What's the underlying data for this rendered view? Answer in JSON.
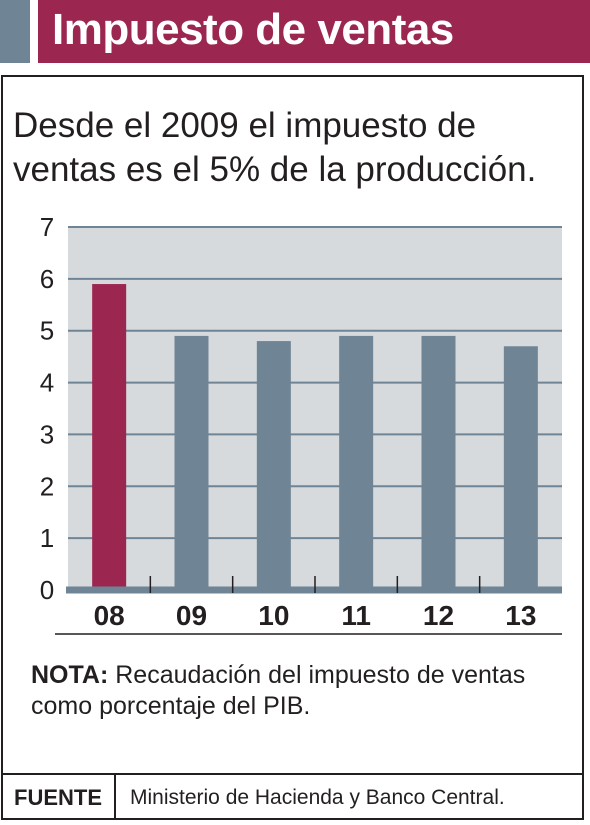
{
  "header": {
    "title": "Impuesto de ventas"
  },
  "subtitle": "Desde el 2009 el impuesto de ventas es el 5% de la producción.",
  "colors": {
    "title_bar": "#9b2750",
    "accent": "#6f8494",
    "highlight_bar": "#9b2750",
    "bar": "#6f8494",
    "plot_background": "#d6dadd",
    "gridline": "#6f8494"
  },
  "chart_data": {
    "type": "bar",
    "title": "",
    "xlabel": "",
    "ylabel": "",
    "categories": [
      "08",
      "09",
      "10",
      "11",
      "12",
      "13"
    ],
    "values": [
      5.9,
      4.9,
      4.8,
      4.9,
      4.9,
      4.7
    ],
    "ylim": [
      0,
      7
    ],
    "yticks": [
      "0",
      "1",
      "2",
      "3",
      "4",
      "5",
      "6",
      "7"
    ],
    "highlight_category": "08",
    "grid": true,
    "legend": "none"
  },
  "note": {
    "label": "NOTA:",
    "text": "Recaudación del impuesto de ventas como porcentaje del PIB."
  },
  "source": {
    "label": "FUENTE",
    "text": "Ministerio de Hacienda y Banco Central."
  }
}
